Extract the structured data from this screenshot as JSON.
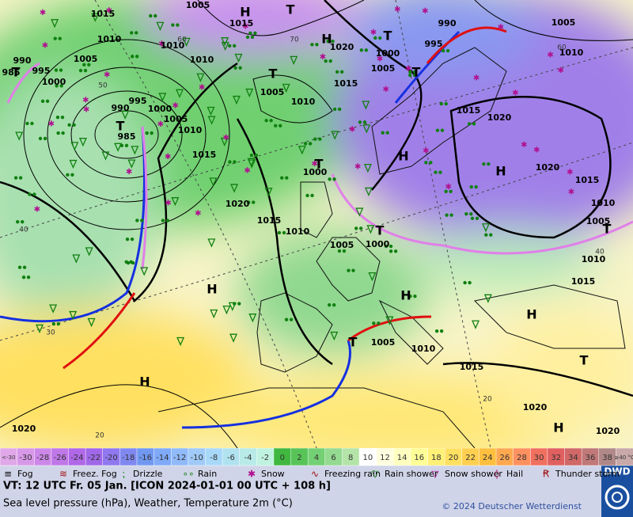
{
  "map": {
    "pressure_labels": [
      "1015",
      "1005",
      "1015",
      "1010",
      "1010",
      "1010",
      "1020",
      "1000",
      "995",
      "990",
      "1005",
      "1010",
      "1005",
      "990",
      "995",
      "985",
      "1000",
      "1005",
      "1015",
      "1005",
      "1010",
      "995",
      "990",
      "1000",
      "1005",
      "985",
      "1010",
      "1015",
      "1020",
      "1015",
      "1000",
      "1020",
      "1015",
      "1020",
      "1015",
      "1010",
      "1010",
      "1005",
      "1005",
      "1000",
      "1010",
      "1015",
      "1005",
      "1010",
      "1015",
      "1020",
      "1020",
      "1020"
    ],
    "latitude_labels": [
      "60",
      "70",
      "50",
      "40",
      "30",
      "20",
      "20",
      "60",
      "40"
    ],
    "centers": [
      "H",
      "T",
      "H",
      "T",
      "T",
      "T",
      "T",
      "T",
      "H",
      "H",
      "T",
      "H",
      "T",
      "H",
      "T",
      "T",
      "H",
      "T",
      "H",
      "H"
    ]
  },
  "scale": {
    "labels": [
      "<-30",
      "-30",
      "-28",
      "-26",
      "-24",
      "-22",
      "-20",
      "-18",
      "-16",
      "-14",
      "-12",
      "-10",
      "-8",
      "-6",
      "-4",
      "-2",
      "0",
      "2",
      "4",
      "6",
      "8",
      "10",
      "12",
      "14",
      "16",
      "18",
      "20",
      "22",
      "24",
      "26",
      "28",
      "30",
      "32",
      "34",
      "36",
      "38",
      "≥40 °C"
    ],
    "colors": [
      "#e0a8e8",
      "#d898e8",
      "#cc88e8",
      "#c078e8",
      "#b068e8",
      "#a068e8",
      "#9078f0",
      "#8088f0",
      "#7098f0",
      "#80aaf8",
      "#90baf8",
      "#a0caf8",
      "#a8d8f8",
      "#b0e2f0",
      "#b8eae8",
      "#c0f2e0",
      "#40b840",
      "#58c458",
      "#74d074",
      "#94da90",
      "#b4e4a8",
      "#ffffff",
      "#ffffe0",
      "#ffffc0",
      "#ffff98",
      "#fff078",
      "#ffe060",
      "#ffd050",
      "#ffc040",
      "#ffa850",
      "#ff9060",
      "#f07060",
      "#e06060",
      "#d06868",
      "#c07878",
      "#b08888",
      "#c8a8a8"
    ]
  },
  "legend": [
    "Fog",
    "Freez. Fog",
    "Drizzle",
    "Rain",
    "Snow",
    "Freezing rain",
    "Rain shower",
    "Snow shower",
    "Hail",
    "Thunder storm"
  ],
  "footer": {
    "valid_time": "VT: 12 UTC Fr.  05 Jan. [ICON 2024-01-01  00 UTC + 108 h]",
    "description": "Sea level pressure (hPa), Weather, Temperature 2m (°C)",
    "copyright": "© 2024 Deutscher Wetterdienst",
    "logo": "DWD"
  }
}
